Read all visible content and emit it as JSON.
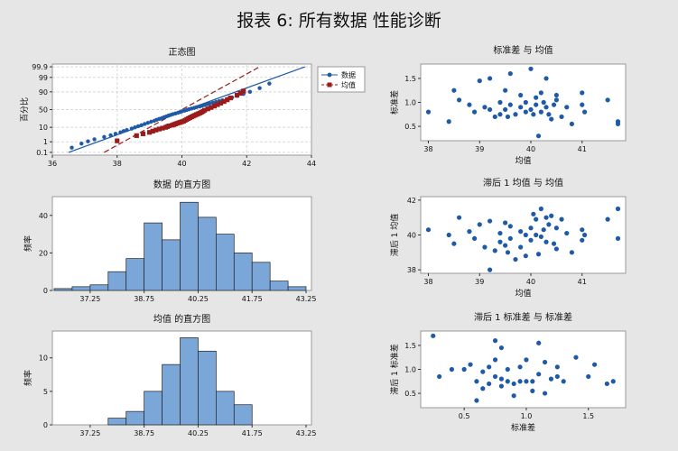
{
  "report_title": "报表 6: 所有数据 性能诊断",
  "colors": {
    "blue": "#1f5aa6",
    "red": "#9b1b1b",
    "bar": "#7aa6d8",
    "bg": "#e6e6e6",
    "grid": "#d8d8d8"
  },
  "chart_data": [
    {
      "id": "prob",
      "type": "scatter",
      "title": "正态图",
      "xlabel": "",
      "ylabel": "百分比",
      "xlim": [
        36,
        44
      ],
      "x_ticks": [
        36,
        38,
        40,
        42,
        44
      ],
      "y_tick_labels": [
        "0.1",
        "1",
        "10",
        "50",
        "90",
        "99",
        "99.9"
      ],
      "y_tick_values": [
        0.1,
        1,
        10,
        50,
        90,
        99,
        99.9
      ],
      "grid": true,
      "legend": "right",
      "series": [
        {
          "name": "数据",
          "marker": "circle",
          "line_x": [
            36.5,
            43.8
          ],
          "line_y_percent": [
            0.1,
            99.9
          ],
          "x": [
            36.6,
            36.9,
            37.1,
            37.3,
            37.6,
            37.8,
            37.95,
            38.1,
            38.2,
            38.3,
            38.45,
            38.55,
            38.65,
            38.75,
            38.85,
            38.95,
            39.05,
            39.15,
            39.22,
            39.3,
            39.38,
            39.45,
            39.52,
            39.58,
            39.65,
            39.72,
            39.8,
            39.88,
            39.95,
            40.0,
            40.08,
            40.15,
            40.22,
            40.3,
            40.38,
            40.45,
            40.55,
            40.62,
            40.7,
            40.78,
            40.85,
            40.95,
            41.05,
            41.15,
            41.25,
            41.4,
            41.55,
            41.7,
            41.9,
            42.1,
            42.4,
            42.7
          ],
          "y_percent": [
            0.3,
            0.7,
            1.1,
            1.6,
            2.4,
            3.2,
            4,
            5,
            6,
            7,
            8.5,
            10,
            11.5,
            13,
            15,
            17,
            19,
            21,
            23,
            25,
            27,
            29,
            31,
            33,
            35,
            37,
            39,
            41,
            43,
            45,
            47,
            49,
            51,
            53,
            55,
            57,
            59,
            61,
            63,
            65,
            67,
            69,
            71,
            73,
            75,
            78,
            81,
            84,
            87,
            90,
            94,
            97
          ]
        },
        {
          "name": "均值",
          "marker": "square",
          "line_x": [
            37.6,
            42.4
          ],
          "line_y_percent": [
            0.1,
            99.9
          ],
          "x": [
            38.0,
            38.6,
            38.8,
            39.0,
            39.1,
            39.2,
            39.3,
            39.4,
            39.5,
            39.55,
            39.6,
            39.7,
            39.75,
            39.8,
            39.85,
            39.9,
            39.95,
            40.0,
            40.05,
            40.1,
            40.15,
            40.2,
            40.25,
            40.3,
            40.35,
            40.4,
            40.45,
            40.5,
            40.55,
            40.6,
            40.65,
            40.7,
            40.8,
            40.9,
            41.0,
            41.1,
            41.2,
            41.3,
            41.4,
            41.5,
            41.7,
            41.8,
            41.9
          ],
          "y_percent": [
            1.2,
            3,
            4,
            5,
            6,
            7,
            8,
            9,
            10,
            11,
            12,
            13,
            14,
            15,
            16,
            17,
            18,
            19,
            20,
            22,
            24,
            26,
            28,
            30,
            32,
            34,
            36,
            38,
            40,
            42,
            45,
            48,
            52,
            56,
            60,
            64,
            68,
            72,
            76,
            80,
            85,
            88,
            91
          ]
        }
      ]
    },
    {
      "id": "hist_data",
      "type": "bar",
      "title": "数据 的直方图",
      "xlabel": "",
      "ylabel": "频率",
      "x_tick_labels": [
        "37.25",
        "38.75",
        "40.25",
        "41.75",
        "43.25"
      ],
      "x_tick_values": [
        37.25,
        38.75,
        40.25,
        41.75,
        43.25
      ],
      "bin_centers": [
        36.5,
        37.0,
        37.5,
        38.0,
        38.5,
        39.0,
        39.5,
        40.0,
        40.5,
        41.0,
        41.5,
        42.0,
        42.5,
        43.0
      ],
      "values": [
        1,
        2,
        3,
        10,
        17,
        36,
        27,
        47,
        39,
        30,
        20,
        15,
        5,
        2
      ],
      "xlim": [
        36.2,
        43.4
      ],
      "ylim": [
        0,
        50
      ],
      "y_ticks": [
        0,
        20,
        40
      ]
    },
    {
      "id": "hist_mean",
      "type": "bar",
      "title": "均值 的直方图",
      "xlabel": "",
      "ylabel": "频率",
      "x_tick_labels": [
        "37.25",
        "38.75",
        "40.25",
        "41.75",
        "43.25"
      ],
      "x_tick_values": [
        37.25,
        38.75,
        40.25,
        41.75,
        43.25
      ],
      "bin_centers": [
        38.0,
        38.5,
        39.0,
        39.5,
        40.0,
        40.5,
        41.0,
        41.5
      ],
      "values": [
        1,
        2,
        5,
        9,
        13,
        11,
        5,
        3
      ],
      "xlim": [
        36.2,
        43.4
      ],
      "ylim": [
        0,
        14
      ],
      "y_ticks": [
        0,
        5,
        10
      ]
    },
    {
      "id": "sd_mean",
      "type": "scatter",
      "title": "标准差 与 均值",
      "xlabel": "均值",
      "ylabel": "标准差",
      "xlim": [
        37.85,
        41.85
      ],
      "x_ticks": [
        38,
        39,
        40,
        41
      ],
      "ylim": [
        0.2,
        1.8
      ],
      "y_ticks": [
        0.5,
        1.0,
        1.5
      ],
      "x": [
        38.0,
        38.4,
        38.5,
        38.6,
        38.8,
        38.9,
        39.0,
        39.1,
        39.2,
        39.2,
        39.3,
        39.4,
        39.4,
        39.5,
        39.5,
        39.55,
        39.6,
        39.6,
        39.7,
        39.8,
        39.8,
        39.9,
        39.9,
        40.0,
        40.0,
        40.05,
        40.1,
        40.1,
        40.15,
        40.2,
        40.2,
        40.25,
        40.3,
        40.3,
        40.35,
        40.4,
        40.45,
        40.5,
        40.5,
        40.6,
        40.7,
        40.8,
        41.0,
        41.0,
        41.05,
        41.5,
        41.7,
        41.7
      ],
      "y": [
        0.8,
        0.6,
        1.25,
        1.05,
        0.95,
        0.8,
        1.45,
        0.9,
        0.85,
        1.5,
        0.7,
        0.75,
        1.0,
        1.25,
        0.85,
        0.7,
        1.6,
        0.95,
        0.75,
        1.15,
        0.9,
        0.8,
        1.0,
        1.7,
        0.85,
        0.75,
        1.1,
        0.95,
        0.3,
        0.8,
        1.2,
        1.0,
        0.9,
        1.5,
        0.75,
        0.65,
        0.95,
        1.15,
        1.05,
        0.7,
        0.9,
        0.55,
        1.2,
        0.95,
        0.8,
        1.05,
        0.6,
        0.55
      ]
    },
    {
      "id": "lag_mean",
      "type": "scatter",
      "title": "滞后 1 均值 与 均值",
      "xlabel": "均值",
      "ylabel": "滞后 1 均值",
      "xlim": [
        37.85,
        41.85
      ],
      "x_ticks": [
        38,
        39,
        40,
        41
      ],
      "ylim": [
        37.8,
        42.2
      ],
      "y_ticks": [
        38,
        40,
        42
      ],
      "x": [
        38.0,
        38.4,
        38.5,
        38.6,
        38.8,
        38.9,
        39.0,
        39.1,
        39.2,
        39.2,
        39.3,
        39.4,
        39.4,
        39.5,
        39.5,
        39.55,
        39.6,
        39.6,
        39.7,
        39.8,
        39.8,
        39.9,
        39.9,
        40.0,
        40.0,
        40.05,
        40.1,
        40.1,
        40.15,
        40.2,
        40.2,
        40.25,
        40.3,
        40.3,
        40.35,
        40.4,
        40.45,
        40.5,
        40.5,
        40.6,
        40.7,
        40.8,
        41.0,
        41.0,
        41.05,
        41.5,
        41.7,
        41.7
      ],
      "y": [
        40.3,
        40.0,
        39.5,
        41.0,
        40.2,
        39.8,
        40.6,
        39.3,
        38.0,
        40.8,
        39.1,
        40.1,
        39.6,
        40.7,
        39.4,
        39.0,
        40.5,
        39.8,
        38.6,
        40.2,
        39.3,
        40.0,
        38.8,
        40.4,
        39.7,
        41.2,
        40.9,
        40.0,
        38.9,
        41.5,
        39.9,
        40.3,
        41.0,
        39.6,
        40.6,
        41.1,
        39.5,
        40.4,
        39.2,
        40.9,
        40.1,
        39.0,
        40.3,
        39.7,
        40.0,
        40.9,
        41.5,
        39.8
      ]
    },
    {
      "id": "lag_sd",
      "type": "scatter",
      "title": "滞后 1 标准差 与 标准差",
      "xlabel": "标准差",
      "ylabel": "滞后 1 标准差",
      "xlim": [
        0.15,
        1.8
      ],
      "x_ticks": [
        0.5,
        1.0,
        1.5
      ],
      "ylim": [
        0.2,
        1.8
      ],
      "y_ticks": [
        0.5,
        1.0,
        1.5
      ],
      "x": [
        0.25,
        0.3,
        0.4,
        0.5,
        0.55,
        0.6,
        0.6,
        0.65,
        0.65,
        0.7,
        0.7,
        0.75,
        0.75,
        0.75,
        0.8,
        0.8,
        0.8,
        0.85,
        0.85,
        0.9,
        0.9,
        0.95,
        0.95,
        1.0,
        1.0,
        1.05,
        1.05,
        1.1,
        1.1,
        1.15,
        1.15,
        1.2,
        1.25,
        1.25,
        1.3,
        1.4,
        1.5,
        1.55,
        1.65,
        1.7
      ],
      "y": [
        1.7,
        0.85,
        1.0,
        1.0,
        1.1,
        0.35,
        0.75,
        0.6,
        0.95,
        1.05,
        0.7,
        1.6,
        0.85,
        1.2,
        1.45,
        0.65,
        0.8,
        0.75,
        1.0,
        0.7,
        0.45,
        1.05,
        0.75,
        1.2,
        0.75,
        0.75,
        0.55,
        1.55,
        0.9,
        1.15,
        0.5,
        0.8,
        0.85,
        1.05,
        0.75,
        1.25,
        0.85,
        1.1,
        0.7,
        0.75
      ]
    }
  ]
}
